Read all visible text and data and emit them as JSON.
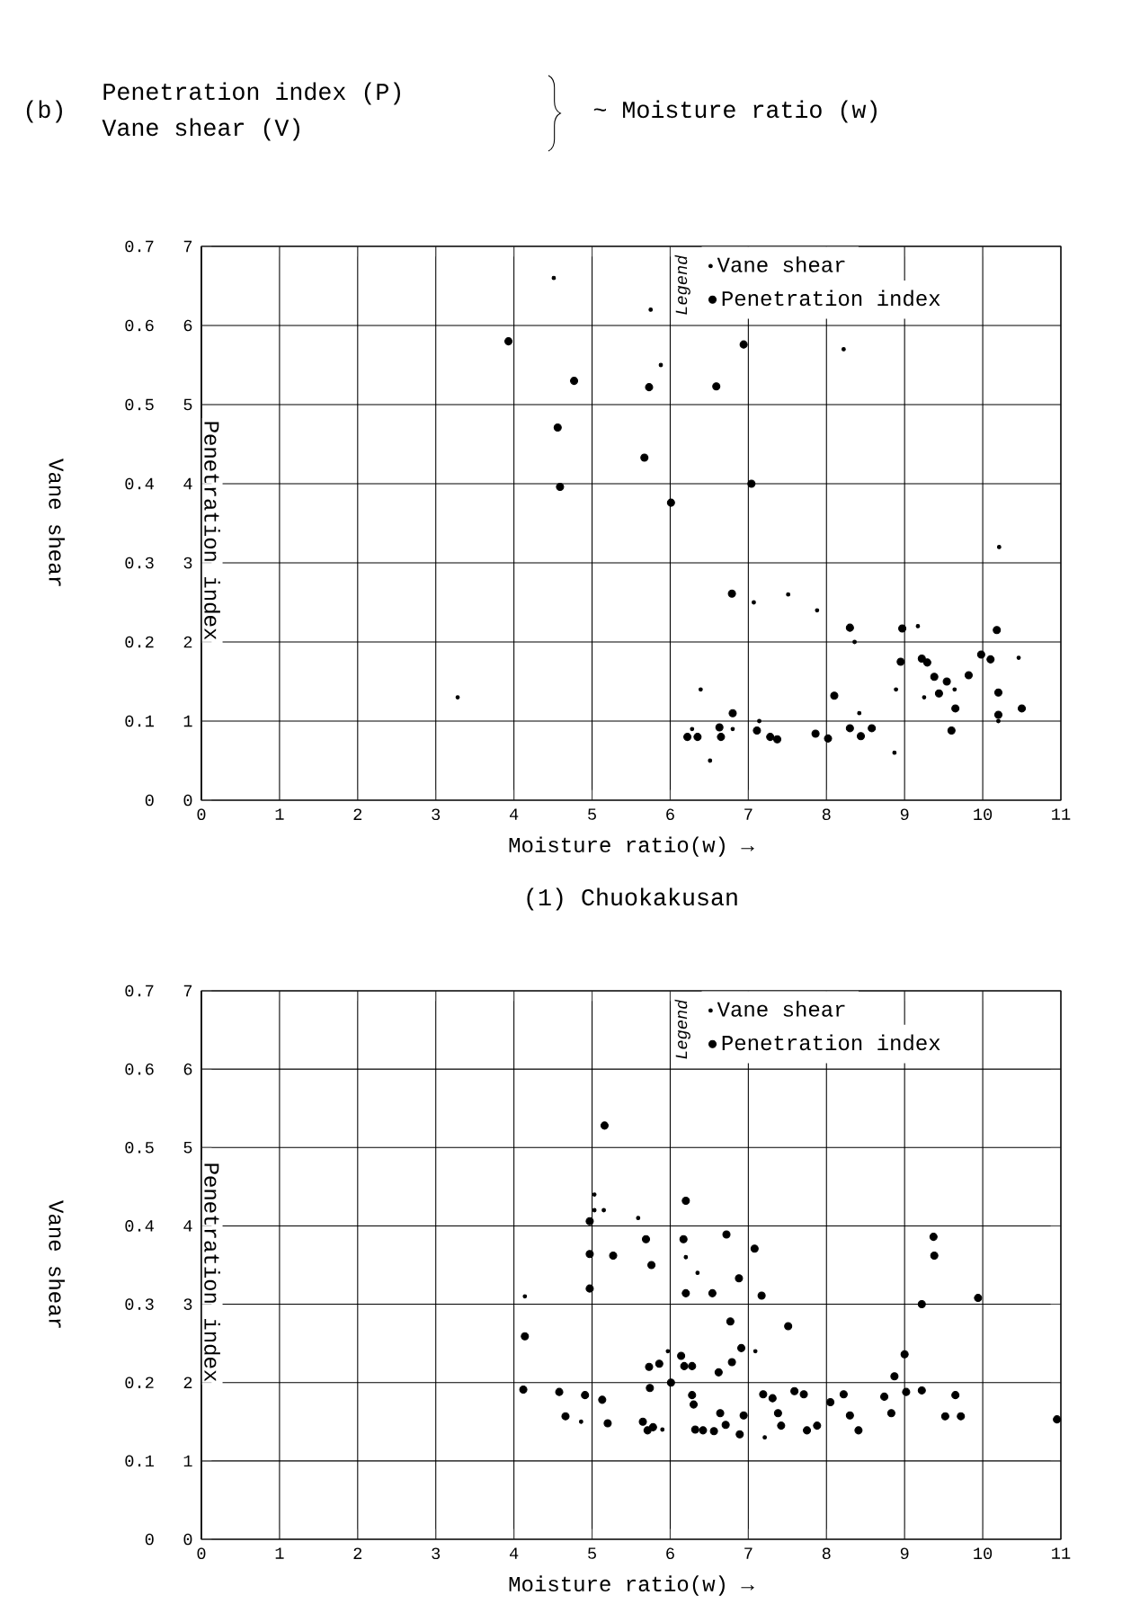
{
  "chart_data": [
    {
      "type": "scatter",
      "title": "Penetration index (P)",
      "subtitle": "Vane shear (V)",
      "annotations": [
        "(b)",
        "~ Moisture ratio (w)",
        "(1) Chuokakusan"
      ],
      "xlabel": "Moisture ratio(w) →",
      "ylabel": "Penetration index",
      "y2label": "Vane shear",
      "xlim": [
        0,
        11
      ],
      "xticks": [
        0,
        1,
        2,
        3,
        4,
        5,
        6,
        7,
        8,
        9,
        10,
        11
      ],
      "ylim": [
        0,
        7
      ],
      "yticks": [
        0,
        1,
        2,
        3,
        4,
        5,
        6,
        7
      ],
      "y2lim": [
        0,
        0.7
      ],
      "y2ticks": [
        0,
        0.1,
        0.2,
        0.3,
        0.4,
        0.5,
        0.6,
        0.7
      ],
      "grid": true,
      "legend": "top right",
      "legend_title": "Legend",
      "marker": "circle",
      "series": [
        {
          "name": "Vane shear",
          "color": "#000000",
          "axis": "y2",
          "x": [
            3.28,
            4.51,
            5.75,
            5.88,
            6.28,
            6.39,
            6.51,
            6.8,
            7.07,
            7.14,
            7.51,
            7.88,
            8.22,
            8.36,
            8.42,
            8.87,
            8.89,
            9.17,
            9.25,
            9.64,
            10.2,
            10.21,
            10.46
          ],
          "values": [
            0.13,
            0.66,
            0.62,
            0.55,
            0.09,
            0.14,
            0.05,
            0.09,
            0.25,
            0.1,
            0.26,
            0.24,
            0.57,
            0.2,
            0.11,
            0.06,
            0.14,
            0.22,
            0.13,
            0.14,
            0.1,
            0.32,
            0.18
          ]
        },
        {
          "name": "Penetration index",
          "color": "#000000",
          "x": [
            3.93,
            4.56,
            4.59,
            4.77,
            5.67,
            5.73,
            6.01,
            6.22,
            6.35,
            6.59,
            6.63,
            6.65,
            6.79,
            6.8,
            6.94,
            7.04,
            7.11,
            7.28,
            7.37,
            7.86,
            8.02,
            8.1,
            8.3,
            8.3,
            8.44,
            8.58,
            8.95,
            8.97,
            9.22,
            9.29,
            9.38,
            9.44,
            9.54,
            9.6,
            9.65,
            9.82,
            9.98,
            10.1,
            10.18,
            10.2,
            10.2,
            10.5
          ],
          "values": [
            5.8,
            4.71,
            3.96,
            5.3,
            4.33,
            5.22,
            3.76,
            0.8,
            0.8,
            5.23,
            0.92,
            0.8,
            2.61,
            1.1,
            5.76,
            4.0,
            0.88,
            0.8,
            0.77,
            0.84,
            0.78,
            1.32,
            2.18,
            0.91,
            0.81,
            0.91,
            1.75,
            2.17,
            1.79,
            1.74,
            1.56,
            1.35,
            1.5,
            0.88,
            1.16,
            1.58,
            1.84,
            1.78,
            2.15,
            1.36,
            1.08,
            1.16
          ]
        }
      ]
    },
    {
      "type": "scatter",
      "xlabel": "Moisture ratio(w) →",
      "ylabel": "Penetration index",
      "y2label": "Vane shear",
      "xlim": [
        0,
        11
      ],
      "xticks": [
        0,
        1,
        2,
        3,
        4,
        5,
        6,
        7,
        8,
        9,
        10,
        11
      ],
      "ylim": [
        0,
        7
      ],
      "yticks": [
        0,
        1,
        2,
        3,
        4,
        5,
        6,
        7
      ],
      "y2lim": [
        0,
        0.7
      ],
      "y2ticks": [
        0,
        0.1,
        0.2,
        0.3,
        0.4,
        0.5,
        0.6,
        0.7
      ],
      "grid": true,
      "legend": "top right",
      "legend_title": "Legend",
      "marker": "circle",
      "series": [
        {
          "name": "Vane shear",
          "color": "#000000",
          "axis": "y2",
          "x": [
            4.14,
            4.86,
            5.03,
            5.03,
            5.15,
            5.59,
            5.9,
            5.97,
            6.2,
            6.35,
            7.09,
            7.21
          ],
          "values": [
            0.31,
            0.15,
            0.44,
            0.42,
            0.42,
            0.41,
            0.14,
            0.24,
            0.36,
            0.34,
            0.24,
            0.13
          ]
        },
        {
          "name": "Penetration index",
          "color": "#000000",
          "x": [
            4.12,
            4.14,
            4.58,
            4.66,
            4.91,
            4.97,
            4.97,
            4.97,
            5.13,
            5.16,
            5.2,
            5.27,
            5.65,
            5.69,
            5.71,
            5.73,
            5.74,
            5.76,
            5.78,
            5.86,
            6.01,
            6.14,
            6.17,
            6.18,
            6.2,
            6.2,
            6.28,
            6.28,
            6.3,
            6.32,
            6.42,
            6.54,
            6.56,
            6.62,
            6.64,
            6.71,
            6.72,
            6.77,
            6.79,
            6.88,
            6.89,
            6.91,
            6.94,
            7.08,
            7.17,
            7.19,
            7.31,
            7.38,
            7.42,
            7.51,
            7.59,
            7.71,
            7.75,
            7.88,
            8.05,
            8.22,
            8.3,
            8.41,
            8.74,
            8.83,
            8.87,
            9.0,
            9.02,
            9.22,
            9.22,
            9.37,
            9.38,
            9.52,
            9.65,
            9.72,
            9.94,
            10.95
          ],
          "values": [
            1.91,
            2.59,
            1.88,
            1.57,
            1.84,
            3.2,
            3.64,
            4.06,
            1.78,
            5.28,
            1.48,
            3.62,
            1.5,
            3.83,
            1.39,
            2.2,
            1.93,
            3.5,
            1.43,
            2.24,
            2.0,
            2.34,
            3.83,
            2.21,
            3.14,
            4.32,
            2.21,
            1.84,
            1.72,
            1.4,
            1.39,
            3.14,
            1.38,
            2.13,
            1.61,
            1.46,
            3.89,
            2.78,
            2.26,
            3.33,
            1.34,
            2.44,
            1.58,
            3.71,
            3.11,
            1.85,
            1.8,
            1.61,
            1.45,
            2.72,
            1.89,
            1.85,
            1.39,
            1.45,
            1.75,
            1.85,
            1.58,
            1.39,
            1.82,
            1.61,
            2.08,
            2.36,
            1.88,
            1.9,
            3.0,
            3.86,
            3.62,
            1.57,
            1.84,
            1.57,
            3.08,
            1.53
          ]
        }
      ]
    }
  ]
}
